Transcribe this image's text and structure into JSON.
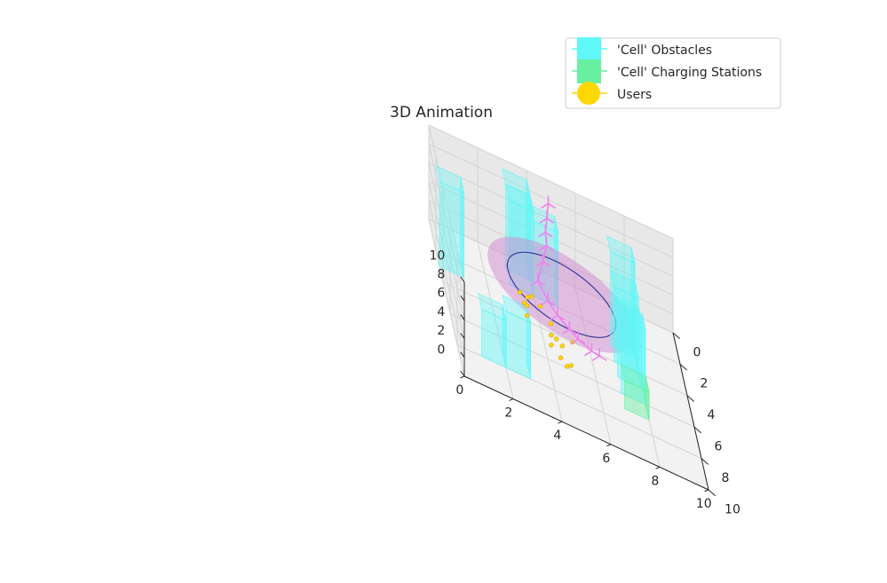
{
  "chart_data": {
    "type": "3d-bar",
    "title": "3D Animation",
    "xlim": [
      0,
      10
    ],
    "ylim": [
      0,
      10
    ],
    "zlim": [
      0,
      10
    ],
    "x_ticks": [
      "0",
      "2",
      "4",
      "6",
      "8",
      "10"
    ],
    "y_ticks": [
      "0",
      "2",
      "4",
      "6",
      "8",
      "10"
    ],
    "z_ticks": [
      "0",
      "2",
      "4",
      "6",
      "8",
      "10"
    ],
    "grid": true,
    "legend_position": "top-right",
    "legend": [
      {
        "label": "'Cell' Obstacles",
        "color": "#5ff7f7"
      },
      {
        "label": "'Cell' Charging Stations",
        "color": "#66f0a0"
      },
      {
        "label": "Users",
        "color": "#ffd700"
      }
    ],
    "obstacles": [
      {
        "x": 2,
        "y": 7,
        "height": 10
      },
      {
        "x": 3,
        "y": 7,
        "height": 8
      },
      {
        "x": 4,
        "y": 7,
        "height": 7
      },
      {
        "x": 5,
        "y": 7,
        "height": 8
      },
      {
        "x": 0,
        "y": 3,
        "height": 9
      },
      {
        "x": 1,
        "y": 3,
        "height": 9
      },
      {
        "x": 1,
        "y": 4,
        "height": 8
      },
      {
        "x": 7,
        "y": 1,
        "height": 5
      },
      {
        "x": 7,
        "y": 2,
        "height": 6
      },
      {
        "x": 2,
        "y": 0,
        "height": 9
      }
    ],
    "charging_stations": [
      {
        "x": 6,
        "y": 7,
        "height": 3
      }
    ],
    "coverage_disk": {
      "cx": 3,
      "cy": 5,
      "z": 3,
      "radius": 3.0,
      "color": "#d08ad0"
    },
    "coverage_ring": {
      "cx": 3,
      "cy": 5,
      "z": 3,
      "radius": 2.2,
      "color": "#3b3b9a"
    },
    "uav_path": {
      "color": "#ee82ee",
      "points": [
        [
          1.3,
          4.7,
          9.5
        ],
        [
          1.6,
          4.6,
          8.3
        ],
        [
          1.9,
          4.5,
          7.2
        ],
        [
          2.2,
          4.5,
          6.3
        ],
        [
          2.6,
          4.3,
          5.0
        ],
        [
          3.2,
          4.0,
          3.6
        ],
        [
          4.0,
          4.3,
          3.2
        ],
        [
          4.6,
          4.6,
          3.0
        ],
        [
          5.2,
          5.0,
          3.0
        ],
        [
          5.6,
          5.3,
          3.0
        ],
        [
          6.0,
          5.8,
          3.0
        ],
        [
          6.1,
          6.1,
          3.0
        ]
      ]
    },
    "users": [
      [
        2.1,
        3.9,
        0
      ],
      [
        2.3,
        3.7,
        0
      ],
      [
        2.2,
        3.4,
        0
      ],
      [
        2.5,
        4.2,
        0
      ],
      [
        2.8,
        3.5,
        0
      ],
      [
        2.9,
        3.6,
        0
      ],
      [
        3.6,
        3.5,
        0
      ],
      [
        3.4,
        4.5,
        0
      ],
      [
        4.2,
        4.4,
        0
      ],
      [
        4.3,
        4.6,
        0
      ],
      [
        4.6,
        4.8,
        0
      ],
      [
        4.0,
        5.3,
        0
      ],
      [
        4.9,
        4.3,
        0
      ],
      [
        5.5,
        4.6,
        0
      ],
      [
        5.7,
        5.0,
        0
      ],
      [
        5.9,
        4.8,
        0
      ]
    ]
  }
}
